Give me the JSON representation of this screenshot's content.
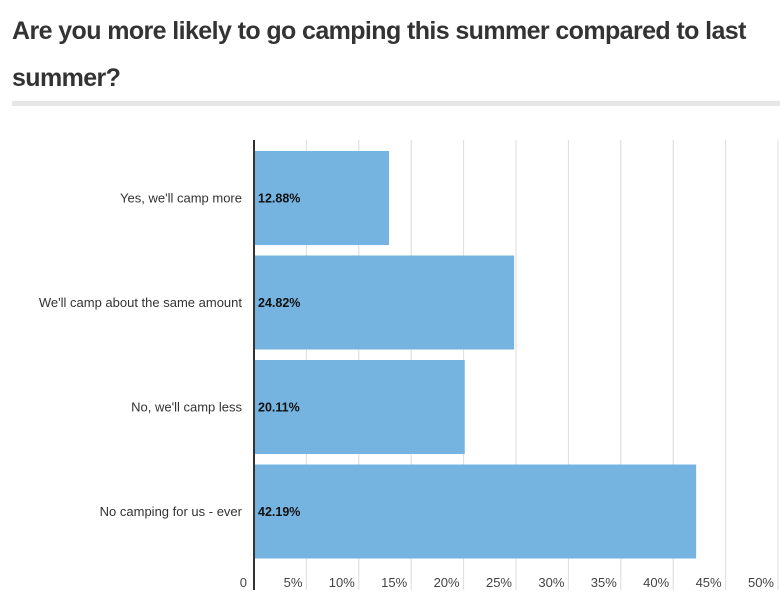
{
  "chart_data": {
    "type": "bar",
    "orientation": "horizontal",
    "title": "Are you more likely to go camping this summer compared to last summer?",
    "categories": [
      "Yes, we'll camp more",
      "We'll camp about the same amount",
      "No, we'll camp less",
      "No camping for us - ever"
    ],
    "values": [
      12.88,
      24.82,
      20.11,
      42.19
    ],
    "data_labels": [
      "12.88%",
      "24.82%",
      "20.11%",
      "42.19%"
    ],
    "xlim": [
      0,
      50
    ],
    "xticks": [
      0,
      5,
      10,
      15,
      20,
      25,
      30,
      35,
      40,
      45,
      50
    ],
    "xtick_labels": [
      "0",
      "5%",
      "10%",
      "15%",
      "20%",
      "25%",
      "30%",
      "35%",
      "40%",
      "45%",
      "50%"
    ],
    "grid": true,
    "bar_color": "#75b4e0"
  }
}
